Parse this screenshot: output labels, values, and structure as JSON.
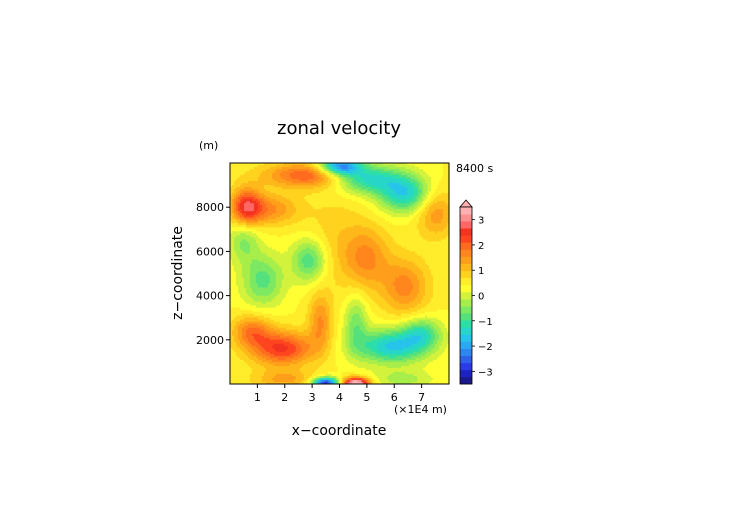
{
  "chart_data": {
    "type": "heatmap",
    "title": "zonal velocity",
    "xlabel": "x−coordinate",
    "ylabel": "z−coordinate",
    "x_unit": "(×1E4 m)",
    "y_unit": "(m)",
    "time_label": "8400 s",
    "xlim": [
      0,
      8
    ],
    "ylim": [
      0,
      10000
    ],
    "x_ticks": [
      "1",
      "2",
      "3",
      "4",
      "5",
      "6",
      "7"
    ],
    "y_ticks": [
      "2000",
      "4000",
      "6000",
      "8000"
    ],
    "colorbar": {
      "min": -3.5,
      "max": 3.5,
      "step": 0.25,
      "tick_labels": [
        "3",
        "2",
        "1",
        "0",
        "−1",
        "−2",
        "−3"
      ],
      "colors": [
        "#1a1a8c",
        "#1c23c0",
        "#2b3be6",
        "#2f62ea",
        "#2e86f0",
        "#2aa8f2",
        "#26c3ea",
        "#27d6c8",
        "#2cdfa6",
        "#54e07c",
        "#7de862",
        "#a8ee4a",
        "#d2f23c",
        "#ffff33",
        "#ffec2a",
        "#ffd21f",
        "#ffb81a",
        "#ff9e1a",
        "#ff851c",
        "#ff6b1f",
        "#ff4520",
        "#f2331f",
        "#ff6666",
        "#ff9090",
        "#ffb0b0"
      ],
      "colors_note_none": ""
    },
    "features": [
      {
        "x": 4.0,
        "z": 9850,
        "u": -2.5,
        "sx": 0.55,
        "sz": 300
      },
      {
        "x": 4.9,
        "z": 9300,
        "u": -1.8,
        "sx": 0.9,
        "sz": 450
      },
      {
        "x": 6.4,
        "z": 8600,
        "u": -1.7,
        "sx": 0.7,
        "sz": 600
      },
      {
        "x": 3.0,
        "z": 9450,
        "u": 1.6,
        "sx": 1.2,
        "sz": 400
      },
      {
        "x": 0.6,
        "z": 8000,
        "u": 1.8,
        "sx": 0.4,
        "sz": 600
      },
      {
        "x": 1.5,
        "z": 7900,
        "u": 1.0,
        "sx": 0.7,
        "sz": 500
      },
      {
        "x": 7.5,
        "z": 7800,
        "u": 1.0,
        "sx": 0.5,
        "sz": 800
      },
      {
        "x": 1.2,
        "z": 4700,
        "u": -1.1,
        "sx": 0.55,
        "sz": 850
      },
      {
        "x": 2.9,
        "z": 5600,
        "u": -1.3,
        "sx": 0.45,
        "sz": 700
      },
      {
        "x": 0.5,
        "z": 6500,
        "u": -0.8,
        "sx": 0.4,
        "sz": 700
      },
      {
        "x": 5.0,
        "z": 5700,
        "u": 1.0,
        "sx": 0.6,
        "sz": 1000
      },
      {
        "x": 6.4,
        "z": 4400,
        "u": 1.1,
        "sx": 0.6,
        "sz": 900
      },
      {
        "x": 3.8,
        "z": 6500,
        "u": 0.4,
        "sx": 0.8,
        "sz": 1600
      },
      {
        "x": 1.9,
        "z": 1600,
        "u": 1.8,
        "sx": 0.8,
        "sz": 550
      },
      {
        "x": 0.8,
        "z": 2400,
        "u": 1.2,
        "sx": 0.5,
        "sz": 500
      },
      {
        "x": 5.9,
        "z": 1700,
        "u": -1.8,
        "sx": 0.9,
        "sz": 550
      },
      {
        "x": 7.0,
        "z": 2300,
        "u": -1.2,
        "sx": 0.5,
        "sz": 500
      },
      {
        "x": 3.3,
        "z": 2800,
        "u": 1.0,
        "sx": 0.3,
        "sz": 900
      },
      {
        "x": 4.6,
        "z": 2800,
        "u": -0.9,
        "sx": 0.3,
        "sz": 900
      },
      {
        "x": 3.5,
        "z": 50,
        "u": -3.0,
        "sx": 0.35,
        "sz": 180
      },
      {
        "x": 4.6,
        "z": 50,
        "u": 3.0,
        "sx": 0.35,
        "sz": 180
      },
      {
        "x": 2.0,
        "z": 200,
        "u": 0.8,
        "sx": 0.8,
        "sz": 300
      },
      {
        "x": 6.3,
        "z": 200,
        "u": -0.6,
        "sx": 0.8,
        "sz": 300
      }
    ]
  }
}
